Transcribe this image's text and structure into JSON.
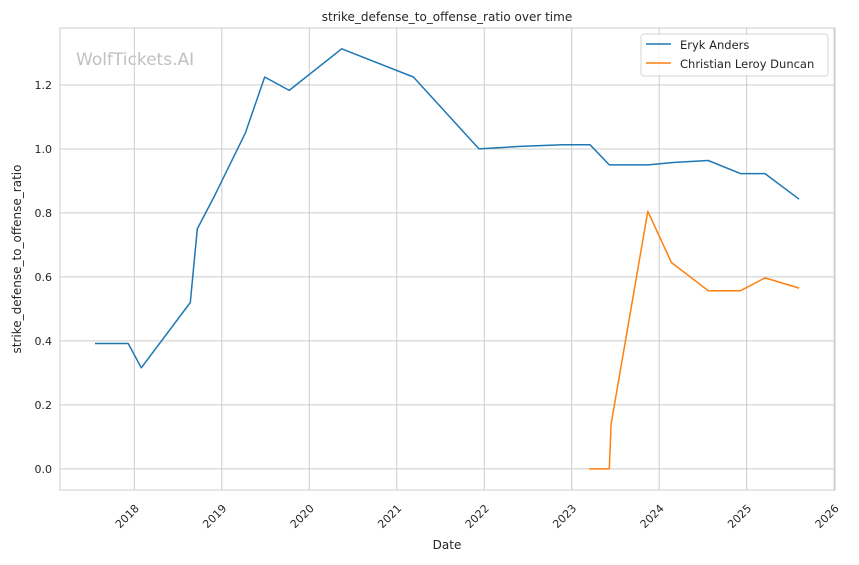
{
  "chart_data": {
    "type": "line",
    "title": "strike_defense_to_offense_ratio over time",
    "xlabel": "Date",
    "ylabel": "strike_defense_to_offense_ratio",
    "watermark": "WolfTickets.AI",
    "xlim": [
      2017.15,
      2026.01
    ],
    "ylim": [
      -0.066,
      1.378
    ],
    "xticks": [
      2018,
      2019,
      2020,
      2021,
      2022,
      2023,
      2024,
      2025,
      2026
    ],
    "xtick_labels": [
      "2018",
      "2019",
      "2020",
      "2021",
      "2022",
      "2023",
      "2024",
      "2025",
      "2026"
    ],
    "yticks": [
      0.0,
      0.2,
      0.4,
      0.6,
      0.8,
      1.0,
      1.2
    ],
    "ytick_labels": [
      "0.0",
      "0.2",
      "0.4",
      "0.6",
      "0.8",
      "1.0",
      "1.2"
    ],
    "grid": true,
    "legend_position": "top-right",
    "series": [
      {
        "name": "Eryk Anders",
        "color": "#1f77b4",
        "x": [
          2017.55,
          2017.93,
          2018.08,
          2018.64,
          2018.72,
          2018.91,
          2019.27,
          2019.49,
          2019.77,
          2020.37,
          2021.19,
          2021.94,
          2022.41,
          2022.9,
          2023.21,
          2023.43,
          2023.87,
          2024.18,
          2024.56,
          2024.93,
          2025.21,
          2025.6
        ],
        "y": [
          0.392,
          0.392,
          0.316,
          0.52,
          0.75,
          0.85,
          1.05,
          1.225,
          1.183,
          1.313,
          1.225,
          1.0,
          1.008,
          1.013,
          1.013,
          0.95,
          0.95,
          0.958,
          0.964,
          0.923,
          0.923,
          0.843
        ]
      },
      {
        "name": "Christian Leroy Duncan",
        "color": "#ff7f0e",
        "x": [
          2023.2,
          2023.43,
          2023.45,
          2023.87,
          2024.14,
          2024.56,
          2024.93,
          2025.21,
          2025.6
        ],
        "y": [
          0.0,
          0.0,
          0.14,
          0.805,
          0.645,
          0.557,
          0.557,
          0.597,
          0.565
        ]
      }
    ]
  }
}
